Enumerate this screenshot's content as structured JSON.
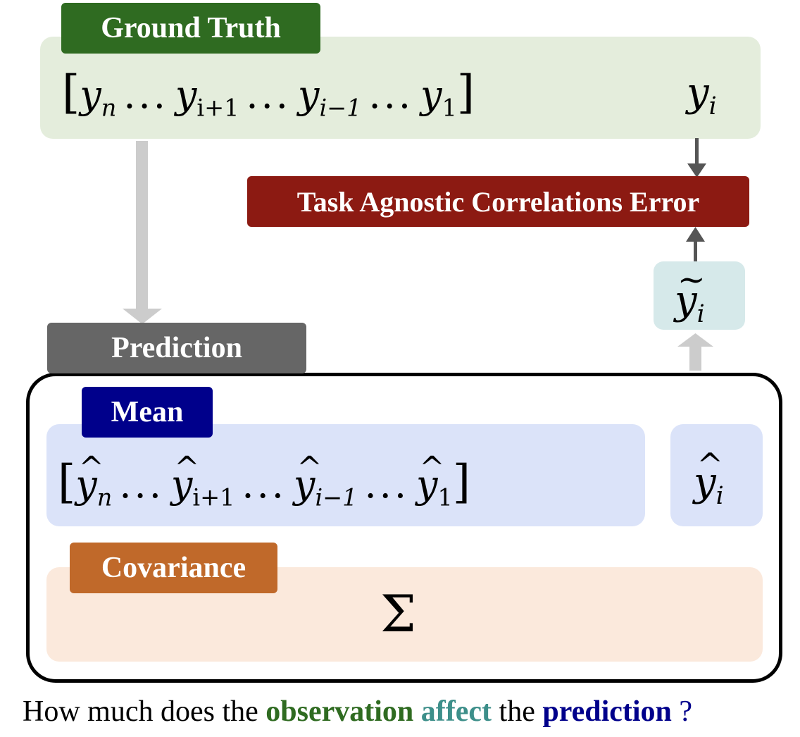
{
  "colors": {
    "ground_truth_label": "#2f6b21",
    "ground_truth_box": "#e4eddc",
    "error_label": "#8c1a12",
    "tilde_box": "#d6e9ea",
    "prediction_label": "#666666",
    "mean_label": "#00008b",
    "mean_box": "#dbe3f9",
    "cov_label": "#c0692a",
    "cov_box": "#fbe9dc",
    "arrow_light": "#cccccc",
    "arrow_dark": "#555555"
  },
  "labels": {
    "ground_truth": "Ground Truth",
    "error": "Task Agnostic Correlations Error",
    "prediction": "Prediction",
    "mean": "Mean",
    "covariance": "Covariance"
  },
  "math": {
    "y": "y",
    "sub_n": "n",
    "sub_ip1": "i+1",
    "sub_im1": "i−1",
    "sub_1": "1",
    "sub_i": "i",
    "dots": "...",
    "lbracket": "[",
    "rbracket": "]",
    "sigma": "Σ"
  },
  "caption": {
    "prefix": "How much does the",
    "w1": "observation",
    "w2": "affect",
    "mid": "the",
    "w3": "prediction",
    "suffix": "?",
    "w1_color": "#2f6b21",
    "w2_color": "#3d8f8a",
    "w3_color": "#00008b"
  }
}
